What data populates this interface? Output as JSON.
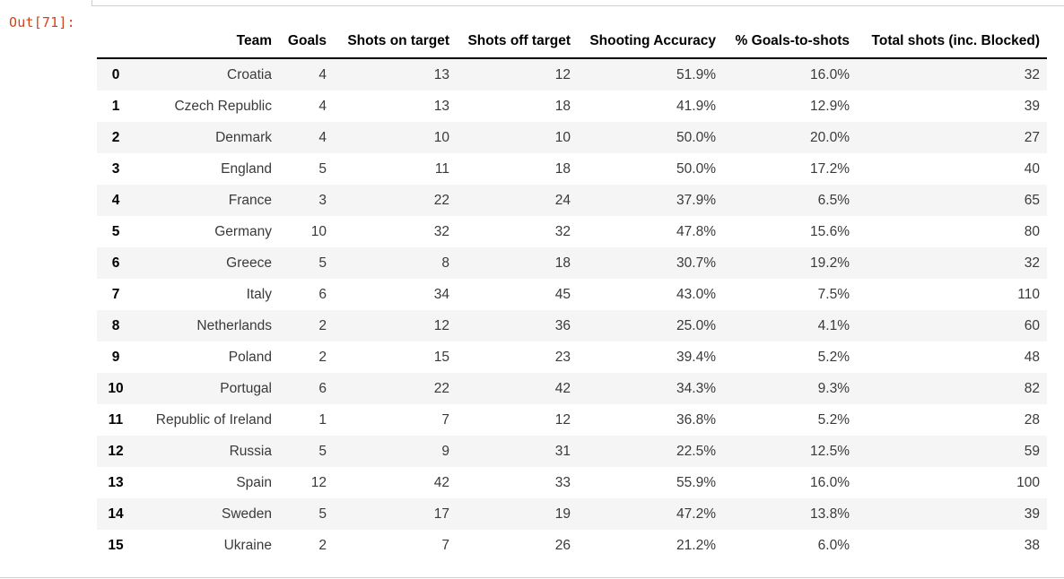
{
  "prompt": "Out[71]:",
  "table": {
    "columns": [
      "",
      "Team",
      "Goals",
      "Shots on target",
      "Shots off target",
      "Shooting Accuracy",
      "% Goals-to-shots",
      "Total shots (inc. Blocked)"
    ],
    "rows": [
      [
        "0",
        "Croatia",
        "4",
        "13",
        "12",
        "51.9%",
        "16.0%",
        "32"
      ],
      [
        "1",
        "Czech Republic",
        "4",
        "13",
        "18",
        "41.9%",
        "12.9%",
        "39"
      ],
      [
        "2",
        "Denmark",
        "4",
        "10",
        "10",
        "50.0%",
        "20.0%",
        "27"
      ],
      [
        "3",
        "England",
        "5",
        "11",
        "18",
        "50.0%",
        "17.2%",
        "40"
      ],
      [
        "4",
        "France",
        "3",
        "22",
        "24",
        "37.9%",
        "6.5%",
        "65"
      ],
      [
        "5",
        "Germany",
        "10",
        "32",
        "32",
        "47.8%",
        "15.6%",
        "80"
      ],
      [
        "6",
        "Greece",
        "5",
        "8",
        "18",
        "30.7%",
        "19.2%",
        "32"
      ],
      [
        "7",
        "Italy",
        "6",
        "34",
        "45",
        "43.0%",
        "7.5%",
        "110"
      ],
      [
        "8",
        "Netherlands",
        "2",
        "12",
        "36",
        "25.0%",
        "4.1%",
        "60"
      ],
      [
        "9",
        "Poland",
        "2",
        "15",
        "23",
        "39.4%",
        "5.2%",
        "48"
      ],
      [
        "10",
        "Portugal",
        "6",
        "22",
        "42",
        "34.3%",
        "9.3%",
        "82"
      ],
      [
        "11",
        "Republic of Ireland",
        "1",
        "7",
        "12",
        "36.8%",
        "5.2%",
        "28"
      ],
      [
        "12",
        "Russia",
        "5",
        "9",
        "31",
        "22.5%",
        "12.5%",
        "59"
      ],
      [
        "13",
        "Spain",
        "12",
        "42",
        "33",
        "55.9%",
        "16.0%",
        "100"
      ],
      [
        "14",
        "Sweden",
        "5",
        "17",
        "19",
        "47.2%",
        "13.8%",
        "39"
      ],
      [
        "15",
        "Ukraine",
        "2",
        "7",
        "26",
        "21.2%",
        "6.0%",
        "38"
      ]
    ]
  }
}
